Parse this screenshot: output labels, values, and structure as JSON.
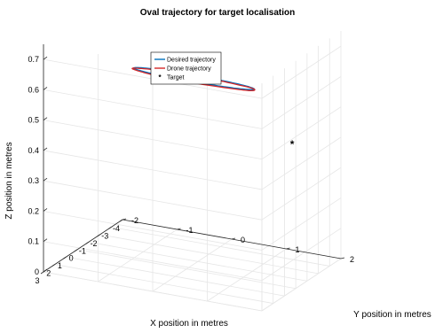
{
  "chart_data": {
    "type": "line",
    "projection": "3d",
    "title": "Oval trajectory for target localisation",
    "xlabel": "X position in metres",
    "ylabel": "Y position in metres",
    "zlabel": "Z position in metres",
    "xlim": [
      -4,
      3
    ],
    "ylim": [
      -2,
      2
    ],
    "zlim": [
      0,
      0.75
    ],
    "x_ticks": [
      "3",
      "2",
      "1",
      "0",
      "-1",
      "-2",
      "-3",
      "-4"
    ],
    "y_ticks": [
      "-2",
      "-1",
      "0",
      "1",
      "2"
    ],
    "z_ticks": [
      "0",
      "0.1",
      "0.2",
      "0.3",
      "0.4",
      "0.5",
      "0.6",
      "0.7"
    ],
    "grid": true,
    "legend_position": "top-left",
    "series": [
      {
        "name": "Desired trajectory",
        "color": "#0072BD",
        "shape": "ellipse",
        "center": {
          "x": -2.6,
          "y": -0.4,
          "z": 0.55
        },
        "semi_axis_x": 0.35,
        "semi_axis_y": 1.1
      },
      {
        "name": "Drone trajectory",
        "color": "#D62728",
        "shape": "ellipse",
        "center": {
          "x": -2.6,
          "y": -0.4,
          "z": 0.548
        },
        "semi_axis_x": 0.36,
        "semi_axis_y": 1.12
      }
    ],
    "target": {
      "name": "Target",
      "marker": "asterisk",
      "color": "#000000",
      "x": 0.8,
      "y": 2.1,
      "z": 0.5
    }
  }
}
